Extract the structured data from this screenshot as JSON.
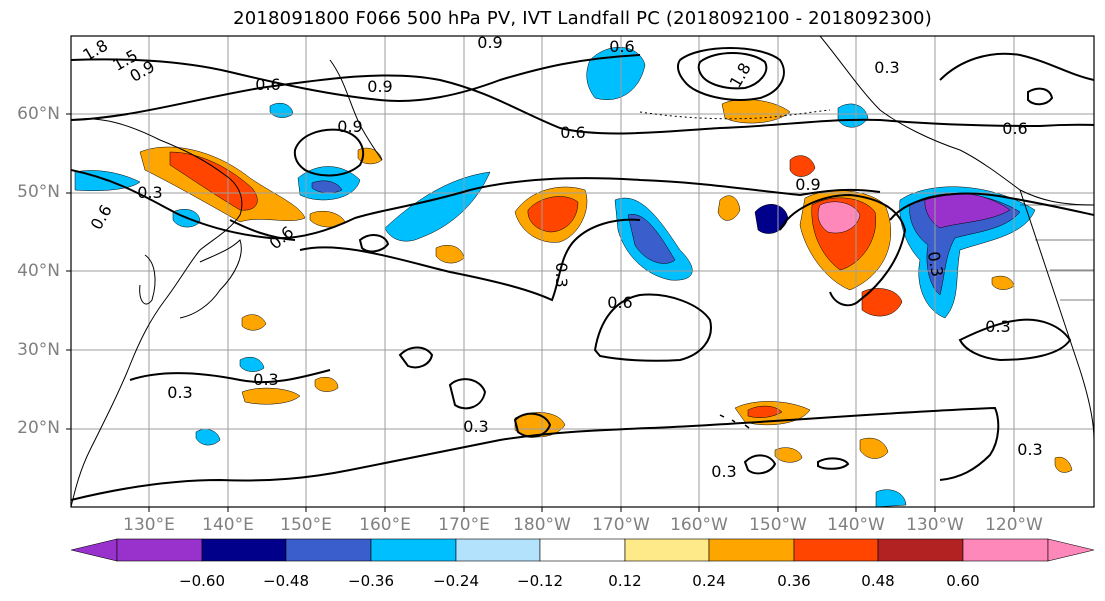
{
  "title": "2018091800 F066 500 hPa PV, IVT Landfall PC (2018092100 - 2018092300)",
  "map": {
    "lat_labels": [
      "60°N",
      "50°N",
      "40°N",
      "30°N",
      "20°N"
    ],
    "lon_labels": [
      "130°E",
      "140°E",
      "150°E",
      "160°E",
      "170°E",
      "180°W",
      "170°W",
      "160°W",
      "150°W",
      "140°W",
      "130°W",
      "120°W"
    ],
    "contour_labels": [
      "0.3",
      "0.6",
      "0.9",
      "1.5",
      "1.8"
    ],
    "contour_color": "#000000",
    "coastline_color": "#000000",
    "grid_color": "#9e9e9e"
  },
  "colorbar": {
    "ticks": [
      "−0.60",
      "−0.48",
      "−0.36",
      "−0.24",
      "−0.12",
      "0.12",
      "0.24",
      "0.36",
      "0.48",
      "0.60"
    ],
    "colors": [
      "#9932cc",
      "#00008b",
      "#3a5fcd",
      "#00bfff",
      "#b2e2fc",
      "#ffffff",
      "#ffea8a",
      "#ffa500",
      "#ff4500",
      "#b22222",
      "#ff88bb"
    ]
  }
}
